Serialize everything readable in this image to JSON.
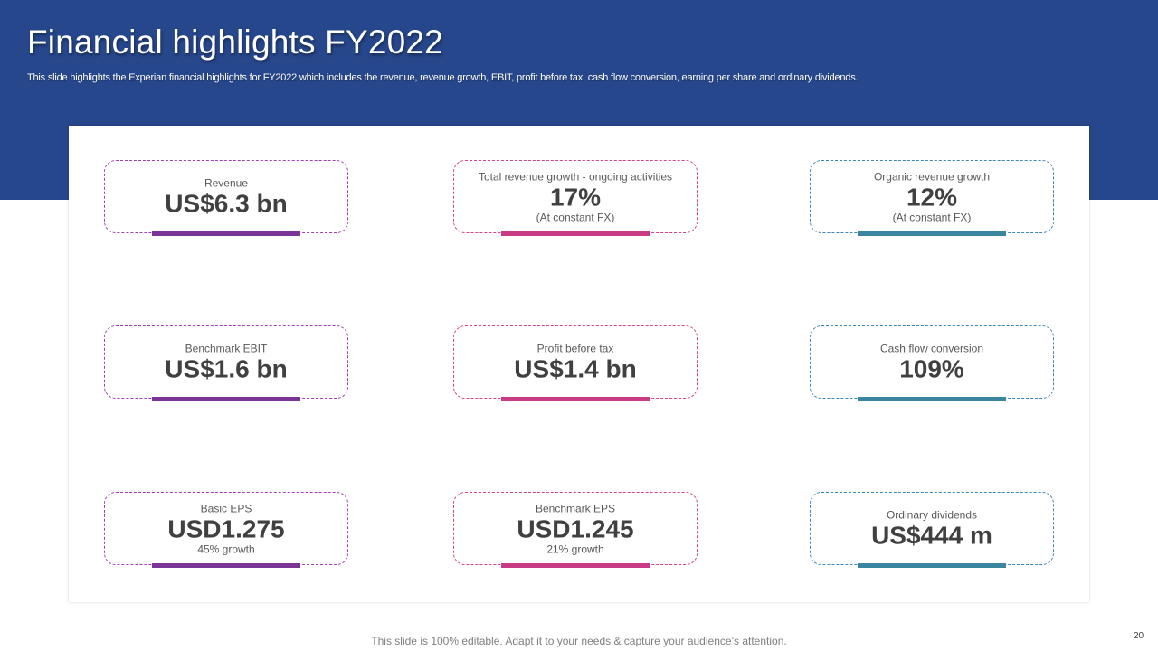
{
  "slide": {
    "title": "Financial highlights FY2022",
    "subtitle": "This slide highlights the Experian financial highlights for FY2022 which includes the revenue, revenue growth, EBIT,  profit before tax,  cash flow conversion, earning per share and ordinary dividends.",
    "footer": "This slide is 100% editable. Adapt it to your needs & capture your audience’s attention.",
    "page_number": "20"
  },
  "colors": {
    "header": "#27478c",
    "purple": "#7b3596",
    "pink": "#c93c85",
    "teal": "#3a85a0"
  },
  "cards": [
    {
      "label": "Revenue",
      "value": "US$6.3 bn",
      "note": ""
    },
    {
      "label": "Total revenue growth - ongoing activities",
      "value": "17%",
      "note": "(At  constant FX)"
    },
    {
      "label": "Organic revenue growth",
      "value": "12%",
      "note": "(At  constant FX)"
    },
    {
      "label": "Benchmark EBIT",
      "value": "US$1.6 bn",
      "note": ""
    },
    {
      "label": "Profit before tax",
      "value": "US$1.4 bn",
      "note": ""
    },
    {
      "label": "Cash flow conversion",
      "value": "109%",
      "note": ""
    },
    {
      "label": "Basic EPS",
      "value": "USD1.275",
      "note": "45% growth"
    },
    {
      "label": "Benchmark EPS",
      "value": "USD1.245",
      "note": "21% growth"
    },
    {
      "label": "Ordinary dividends",
      "value": "US$444 m",
      "note": ""
    }
  ]
}
